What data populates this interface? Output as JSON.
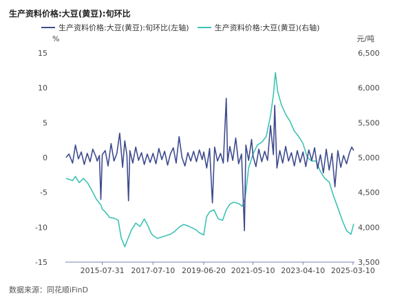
{
  "title": "生产资料价格:大豆(黄豆):旬环比",
  "source_note": "数据来源：同花顺iFinD",
  "colors": {
    "left_series": "#3d4a8c",
    "right_series": "#3cc2b4",
    "axis": "#7a7fb0",
    "text": "#444444"
  },
  "chart_data": {
    "type": "line",
    "title": "生产资料价格:大豆(黄豆):旬环比",
    "x_tick_labels": [
      "2015-07-31",
      "2017-07-10",
      "2019-06-20",
      "2021-05-10",
      "2023-04-10",
      "2025-03-10"
    ],
    "x_range": [
      "2014-03-01",
      "2025-03-31"
    ],
    "y_left": {
      "unit": "%",
      "ticks": [
        15,
        10,
        5,
        0,
        -5,
        -10,
        -15
      ],
      "range": [
        -15,
        15
      ]
    },
    "y_right": {
      "unit": "元/吨",
      "ticks": [
        "6,500",
        "6,000",
        "5,500",
        "5,000",
        "4,500",
        "4,000",
        "3,500"
      ],
      "range": [
        3500,
        6500
      ]
    },
    "legend_position": "top-left",
    "grid": false,
    "series": [
      {
        "name": "生产资料价格:大豆(黄豆):旬环比(左轴)",
        "axis": "left",
        "points": [
          [
            "2014-03-10",
            0
          ],
          [
            "2014-04-20",
            0.5
          ],
          [
            "2014-06-10",
            -0.8
          ],
          [
            "2014-07-20",
            1.8
          ],
          [
            "2014-08-30",
            -0.2
          ],
          [
            "2014-10-10",
            0.8
          ],
          [
            "2014-11-20",
            -1.0
          ],
          [
            "2015-01-01",
            0.6
          ],
          [
            "2015-02-10",
            -0.6
          ],
          [
            "2015-03-20",
            1.2
          ],
          [
            "2015-04-30",
            0.2
          ],
          [
            "2015-05-20",
            -0.5
          ],
          [
            "2015-06-20",
            0.3
          ],
          [
            "2015-07-10",
            -6.0
          ],
          [
            "2015-07-31",
            0.4
          ],
          [
            "2015-09-10",
            1.0
          ],
          [
            "2015-10-20",
            -1.2
          ],
          [
            "2015-12-01",
            2.0
          ],
          [
            "2016-01-10",
            -0.5
          ],
          [
            "2016-02-20",
            0.6
          ],
          [
            "2016-03-30",
            3.5
          ],
          [
            "2016-05-10",
            -1.4
          ],
          [
            "2016-06-10",
            2.4
          ],
          [
            "2016-07-10",
            0.3
          ],
          [
            "2016-08-01",
            -6.2
          ],
          [
            "2016-08-20",
            1.0
          ],
          [
            "2016-09-30",
            -0.8
          ],
          [
            "2016-11-10",
            1.5
          ],
          [
            "2016-12-20",
            -0.4
          ],
          [
            "2017-01-30",
            0.7
          ],
          [
            "2017-03-10",
            -1.0
          ],
          [
            "2017-04-20",
            0.5
          ],
          [
            "2017-05-30",
            -0.7
          ],
          [
            "2017-07-10",
            0.6
          ],
          [
            "2017-08-20",
            -0.9
          ],
          [
            "2017-09-30",
            1.3
          ],
          [
            "2017-11-10",
            -0.3
          ],
          [
            "2017-12-20",
            0.9
          ],
          [
            "2018-01-30",
            -1.1
          ],
          [
            "2018-03-10",
            0.5
          ],
          [
            "2018-04-20",
            1.4
          ],
          [
            "2018-05-30",
            -0.8
          ],
          [
            "2018-07-10",
            3.0
          ],
          [
            "2018-08-20",
            0.0
          ],
          [
            "2018-09-30",
            -1.2
          ],
          [
            "2018-11-10",
            0.7
          ],
          [
            "2018-12-20",
            -0.5
          ],
          [
            "2019-01-30",
            0.9
          ],
          [
            "2019-03-10",
            -0.6
          ],
          [
            "2019-04-20",
            1.1
          ],
          [
            "2019-05-30",
            -0.3
          ],
          [
            "2019-06-20",
            0.8
          ],
          [
            "2019-08-01",
            -1.5
          ],
          [
            "2019-09-10",
            1.3
          ],
          [
            "2019-10-20",
            -6.5
          ],
          [
            "2019-11-20",
            1.5
          ],
          [
            "2019-12-30",
            -0.5
          ],
          [
            "2020-02-10",
            0.6
          ],
          [
            "2020-03-20",
            -0.8
          ],
          [
            "2020-04-30",
            8.5
          ],
          [
            "2020-05-20",
            -0.6
          ],
          [
            "2020-06-20",
            1.6
          ],
          [
            "2020-07-30",
            -0.4
          ],
          [
            "2020-09-10",
            2.8
          ],
          [
            "2020-10-20",
            -0.9
          ],
          [
            "2020-11-30",
            0.5
          ],
          [
            "2021-01-10",
            -10.5
          ],
          [
            "2021-01-30",
            1.8
          ],
          [
            "2021-03-10",
            -0.4
          ],
          [
            "2021-04-20",
            2.6
          ],
          [
            "2021-05-10",
            0.2
          ],
          [
            "2021-06-20",
            -1.3
          ],
          [
            "2021-07-30",
            1.2
          ],
          [
            "2021-09-10",
            -0.6
          ],
          [
            "2021-10-20",
            0.9
          ],
          [
            "2021-11-30",
            -0.4
          ],
          [
            "2022-01-10",
            4.6
          ],
          [
            "2022-02-20",
            0.4
          ],
          [
            "2022-03-10",
            7.5
          ],
          [
            "2022-04-10",
            -1.5
          ],
          [
            "2022-05-20",
            1.0
          ],
          [
            "2022-06-30",
            -0.8
          ],
          [
            "2022-08-10",
            1.6
          ],
          [
            "2022-09-20",
            -0.5
          ],
          [
            "2022-10-30",
            0.7
          ],
          [
            "2022-12-10",
            -1.2
          ],
          [
            "2023-01-20",
            1.0
          ],
          [
            "2023-03-01",
            -0.7
          ],
          [
            "2023-04-10",
            0.8
          ],
          [
            "2023-05-20",
            -1.3
          ],
          [
            "2023-06-30",
            1.1
          ],
          [
            "2023-08-10",
            -0.4
          ],
          [
            "2023-09-20",
            1.4
          ],
          [
            "2023-10-30",
            -1.6
          ],
          [
            "2023-12-10",
            0.4
          ],
          [
            "2024-01-20",
            -2.2
          ],
          [
            "2024-03-01",
            1.2
          ],
          [
            "2024-04-10",
            -1.8
          ],
          [
            "2024-05-20",
            0.6
          ],
          [
            "2024-06-30",
            -4.2
          ],
          [
            "2024-08-10",
            1.0
          ],
          [
            "2024-09-20",
            -1.4
          ],
          [
            "2024-10-30",
            0.3
          ],
          [
            "2024-12-10",
            -0.9
          ],
          [
            "2025-01-20",
            0.7
          ],
          [
            "2025-02-20",
            1.5
          ],
          [
            "2025-03-20",
            1.0
          ]
        ]
      },
      {
        "name": "生产资料价格:大豆(黄豆)(右轴)",
        "axis": "right",
        "points": [
          [
            "2014-03-10",
            4700
          ],
          [
            "2014-06-10",
            4670
          ],
          [
            "2014-07-20",
            4730
          ],
          [
            "2014-09-10",
            4640
          ],
          [
            "2014-11-10",
            4700
          ],
          [
            "2015-01-10",
            4630
          ],
          [
            "2015-03-10",
            4520
          ],
          [
            "2015-05-10",
            4400
          ],
          [
            "2015-07-10",
            4320
          ],
          [
            "2015-07-31",
            4260
          ],
          [
            "2015-09-10",
            4220
          ],
          [
            "2015-11-10",
            4140
          ],
          [
            "2016-01-10",
            4130
          ],
          [
            "2016-03-10",
            4100
          ],
          [
            "2016-04-20",
            3850
          ],
          [
            "2016-06-10",
            3720
          ],
          [
            "2016-07-10",
            3800
          ],
          [
            "2016-09-10",
            3960
          ],
          [
            "2016-11-10",
            4060
          ],
          [
            "2017-01-10",
            4010
          ],
          [
            "2017-03-10",
            4120
          ],
          [
            "2017-05-10",
            4000
          ],
          [
            "2017-06-10",
            3920
          ],
          [
            "2017-07-10",
            3880
          ],
          [
            "2017-09-10",
            3840
          ],
          [
            "2017-11-10",
            3860
          ],
          [
            "2018-01-10",
            3880
          ],
          [
            "2018-03-10",
            3900
          ],
          [
            "2018-05-10",
            3940
          ],
          [
            "2018-07-10",
            4000
          ],
          [
            "2018-09-10",
            4040
          ],
          [
            "2018-11-10",
            4020
          ],
          [
            "2019-01-10",
            3990
          ],
          [
            "2019-03-10",
            3960
          ],
          [
            "2019-04-20",
            3920
          ],
          [
            "2019-06-20",
            3890
          ],
          [
            "2019-07-30",
            4150
          ],
          [
            "2019-09-10",
            4220
          ],
          [
            "2019-11-10",
            4250
          ],
          [
            "2020-01-10",
            4120
          ],
          [
            "2020-03-10",
            4100
          ],
          [
            "2020-04-30",
            4250
          ],
          [
            "2020-06-20",
            4330
          ],
          [
            "2020-08-10",
            4360
          ],
          [
            "2020-10-20",
            4340
          ],
          [
            "2020-12-10",
            4300
          ],
          [
            "2021-01-20",
            4420
          ],
          [
            "2021-03-10",
            4850
          ],
          [
            "2021-05-10",
            5050
          ],
          [
            "2021-07-10",
            5180
          ],
          [
            "2021-09-10",
            5220
          ],
          [
            "2021-11-10",
            5300
          ],
          [
            "2022-01-10",
            5600
          ],
          [
            "2022-02-20",
            5900
          ],
          [
            "2022-03-20",
            6220
          ],
          [
            "2022-04-20",
            5950
          ],
          [
            "2022-06-10",
            5760
          ],
          [
            "2022-08-10",
            5620
          ],
          [
            "2022-10-10",
            5520
          ],
          [
            "2022-12-10",
            5380
          ],
          [
            "2023-02-10",
            5300
          ],
          [
            "2023-04-10",
            5200
          ],
          [
            "2023-06-10",
            5000
          ],
          [
            "2023-08-10",
            4950
          ],
          [
            "2023-10-10",
            4950
          ],
          [
            "2023-12-10",
            4800
          ],
          [
            "2024-02-10",
            4700
          ],
          [
            "2024-04-10",
            4650
          ],
          [
            "2024-06-10",
            4450
          ],
          [
            "2024-08-10",
            4280
          ],
          [
            "2024-10-10",
            4100
          ],
          [
            "2024-12-10",
            3950
          ],
          [
            "2025-02-10",
            3900
          ],
          [
            "2025-03-20",
            4050
          ]
        ]
      }
    ]
  }
}
